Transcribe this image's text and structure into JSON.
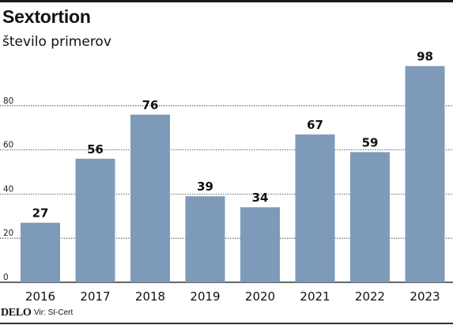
{
  "header": {
    "title": "Sextortion",
    "subtitle": "število primerov"
  },
  "footer": {
    "brand": "DELO",
    "source": "Vir: SI-Cert"
  },
  "colors": {
    "bar": "#7d9bb8",
    "gridline": "#333333",
    "text": "#111111"
  },
  "chart_data": {
    "type": "bar",
    "title": "Sextortion",
    "subtitle": "število primerov",
    "xlabel": "",
    "ylabel": "",
    "categories": [
      "2016",
      "2017",
      "2018",
      "2019",
      "2020",
      "2021",
      "2022",
      "2023"
    ],
    "values": [
      27,
      56,
      76,
      39,
      34,
      67,
      59,
      98
    ],
    "ylim": [
      0,
      100
    ],
    "yticks": [
      0,
      20,
      40,
      60,
      80
    ],
    "grid": true,
    "legend": "none",
    "data_labels": true
  }
}
